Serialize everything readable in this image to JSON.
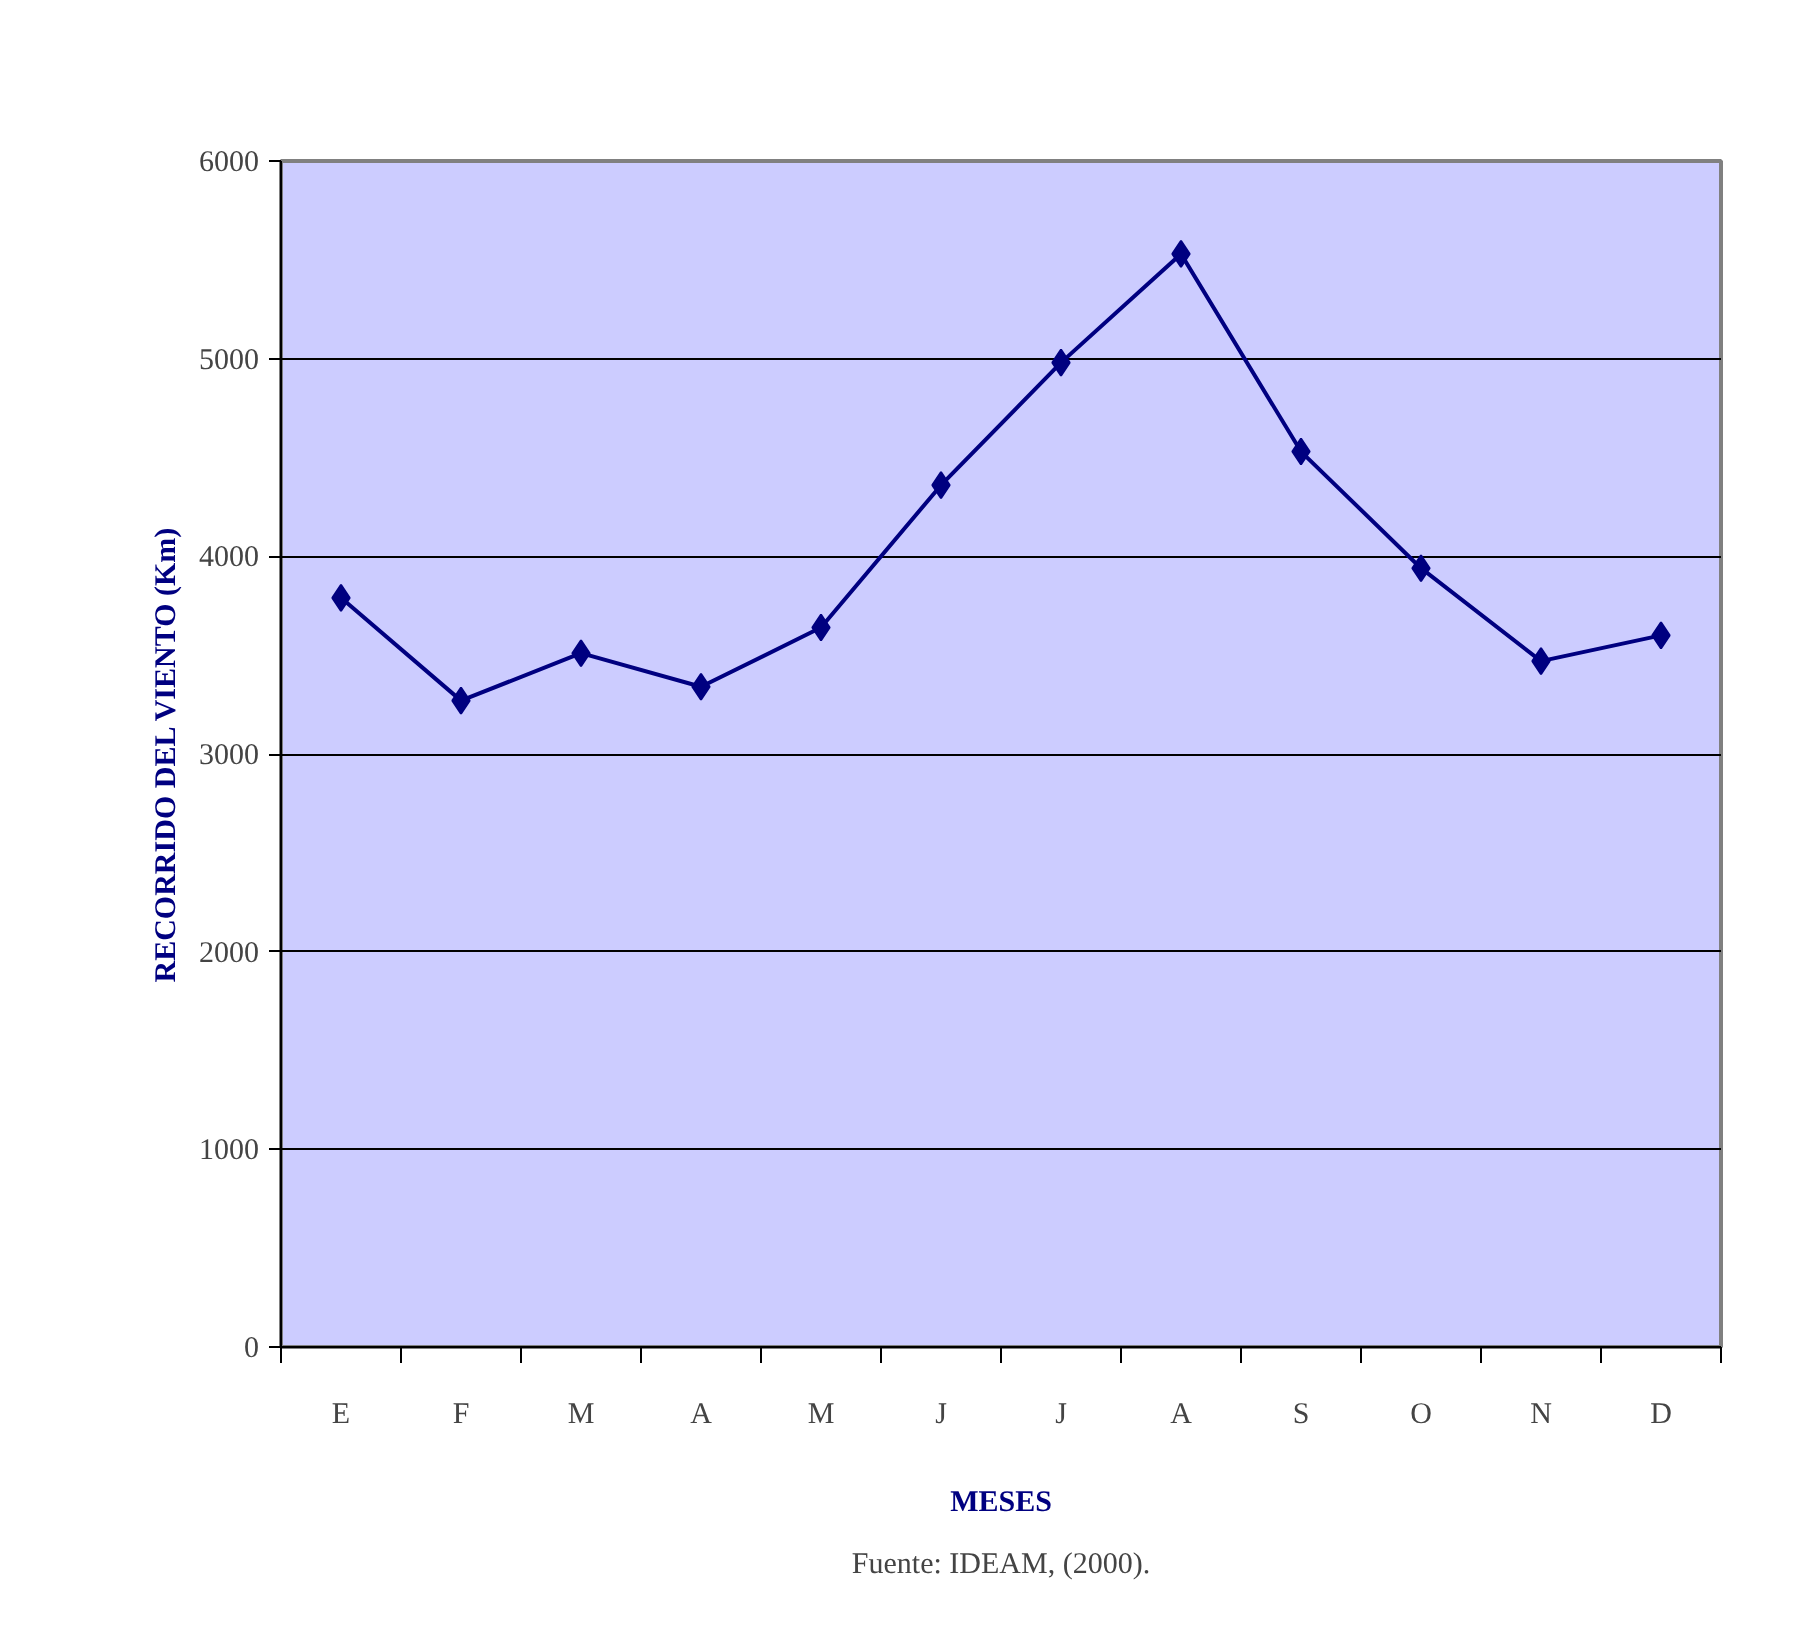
{
  "chart_data": {
    "type": "line",
    "xlabel": "MESES",
    "ylabel": "RECORRIDO DEL VIENTO (Km)",
    "categories": [
      "E",
      "F",
      "M",
      "A",
      "M",
      "J",
      "J",
      "A",
      "S",
      "O",
      "N",
      "D"
    ],
    "series": [
      {
        "color": "#000080",
        "values": [
          3790,
          3270,
          3510,
          3340,
          3640,
          4360,
          4980,
          5530,
          4530,
          3940,
          3470,
          3600
        ]
      }
    ],
    "ylim": [
      0,
      6000
    ],
    "yticks": [
      0,
      1000,
      2000,
      3000,
      4000,
      5000,
      6000
    ],
    "grid": "y",
    "marker": "diamond",
    "line_style": "solid",
    "annotations": [
      "Fuente: IDEAM, (2000)."
    ]
  }
}
